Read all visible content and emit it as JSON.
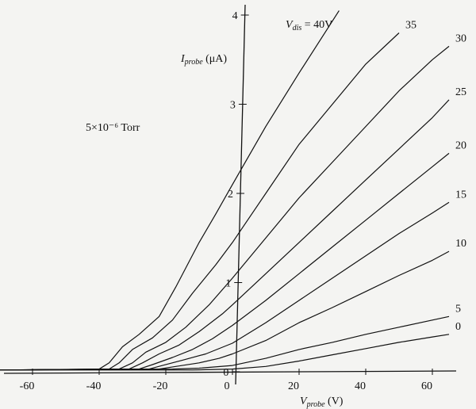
{
  "chart_data": {
    "type": "line",
    "annotation": "5×10⁻⁶ Torr",
    "xaxis": {
      "label_var": "V",
      "label_sub": "probe",
      "label_unit": "(V)",
      "range": [
        -70,
        70
      ],
      "ticks": [
        -60,
        -40,
        -20,
        0,
        20,
        40,
        60
      ],
      "tick_labels": [
        "-60",
        "-40",
        "-20",
        "0",
        "20",
        "40",
        "60"
      ]
    },
    "yaxis": {
      "label_var": "I",
      "label_sub": "probe",
      "label_unit": "(μA)",
      "range": [
        -0.05,
        4.2
      ],
      "ticks": [
        0,
        1,
        2,
        3,
        4
      ],
      "tick_labels": [
        "0",
        "1",
        "2",
        "3",
        "4"
      ]
    },
    "series_label_var": "V",
    "series_label_sub": "dis",
    "grid": false,
    "series": [
      {
        "label": "40V",
        "points": [
          [
            -70,
            0.02
          ],
          [
            -40,
            0.03
          ],
          [
            -37,
            0.1
          ],
          [
            -33,
            0.28
          ],
          [
            -28,
            0.42
          ],
          [
            -22,
            0.62
          ],
          [
            -17,
            0.95
          ],
          [
            -10,
            1.45
          ],
          [
            -5,
            1.77
          ],
          [
            0,
            2.1
          ],
          [
            10,
            2.75
          ],
          [
            20,
            3.35
          ],
          [
            32,
            4.05
          ]
        ]
      },
      {
        "label": "35",
        "points": [
          [
            -70,
            0.02
          ],
          [
            -37,
            0.03
          ],
          [
            -34,
            0.1
          ],
          [
            -30,
            0.25
          ],
          [
            -24,
            0.38
          ],
          [
            -18,
            0.58
          ],
          [
            -12,
            0.88
          ],
          [
            -5,
            1.2
          ],
          [
            0,
            1.45
          ],
          [
            10,
            2.0
          ],
          [
            20,
            2.55
          ],
          [
            30,
            3.0
          ],
          [
            40,
            3.45
          ],
          [
            50,
            3.8
          ]
        ]
      },
      {
        "label": "30",
        "points": [
          [
            -70,
            0.02
          ],
          [
            -34,
            0.03
          ],
          [
            -30,
            0.1
          ],
          [
            -26,
            0.22
          ],
          [
            -20,
            0.33
          ],
          [
            -14,
            0.5
          ],
          [
            -7,
            0.75
          ],
          [
            0,
            1.05
          ],
          [
            10,
            1.5
          ],
          [
            20,
            1.95
          ],
          [
            30,
            2.35
          ],
          [
            40,
            2.75
          ],
          [
            50,
            3.15
          ],
          [
            60,
            3.5
          ],
          [
            65,
            3.65
          ]
        ]
      },
      {
        "label": "25",
        "points": [
          [
            -70,
            0.02
          ],
          [
            -31,
            0.03
          ],
          [
            -27,
            0.1
          ],
          [
            -22,
            0.2
          ],
          [
            -16,
            0.3
          ],
          [
            -10,
            0.45
          ],
          [
            -3,
            0.65
          ],
          [
            0,
            0.75
          ],
          [
            10,
            1.1
          ],
          [
            20,
            1.45
          ],
          [
            30,
            1.8
          ],
          [
            40,
            2.15
          ],
          [
            50,
            2.5
          ],
          [
            60,
            2.85
          ],
          [
            65,
            3.05
          ]
        ]
      },
      {
        "label": "20",
        "points": [
          [
            -70,
            0.02
          ],
          [
            -28,
            0.03
          ],
          [
            -24,
            0.08
          ],
          [
            -18,
            0.16
          ],
          [
            -12,
            0.25
          ],
          [
            -6,
            0.37
          ],
          [
            0,
            0.52
          ],
          [
            10,
            0.8
          ],
          [
            20,
            1.1
          ],
          [
            30,
            1.4
          ],
          [
            40,
            1.7
          ],
          [
            50,
            2.0
          ],
          [
            60,
            2.3
          ],
          [
            65,
            2.45
          ]
        ]
      },
      {
        "label": "15",
        "points": [
          [
            -70,
            0.02
          ],
          [
            -25,
            0.03
          ],
          [
            -21,
            0.07
          ],
          [
            -15,
            0.13
          ],
          [
            -8,
            0.2
          ],
          [
            0,
            0.32
          ],
          [
            10,
            0.55
          ],
          [
            20,
            0.8
          ],
          [
            30,
            1.05
          ],
          [
            40,
            1.3
          ],
          [
            50,
            1.55
          ],
          [
            60,
            1.78
          ],
          [
            65,
            1.9
          ]
        ]
      },
      {
        "label": "10",
        "points": [
          [
            -70,
            0.02
          ],
          [
            -22,
            0.03
          ],
          [
            -17,
            0.06
          ],
          [
            -10,
            0.1
          ],
          [
            -4,
            0.15
          ],
          [
            0,
            0.2
          ],
          [
            10,
            0.35
          ],
          [
            20,
            0.55
          ],
          [
            30,
            0.72
          ],
          [
            40,
            0.9
          ],
          [
            50,
            1.08
          ],
          [
            60,
            1.25
          ],
          [
            65,
            1.35
          ]
        ]
      },
      {
        "label": "5",
        "points": [
          [
            -70,
            0.02
          ],
          [
            -18,
            0.03
          ],
          [
            -10,
            0.04
          ],
          [
            0,
            0.07
          ],
          [
            10,
            0.15
          ],
          [
            20,
            0.25
          ],
          [
            30,
            0.33
          ],
          [
            40,
            0.42
          ],
          [
            50,
            0.5
          ],
          [
            60,
            0.58
          ],
          [
            65,
            0.62
          ]
        ]
      },
      {
        "label": "0",
        "points": [
          [
            -70,
            0.02
          ],
          [
            -12,
            0.02
          ],
          [
            0,
            0.03
          ],
          [
            10,
            0.06
          ],
          [
            20,
            0.12
          ],
          [
            30,
            0.19
          ],
          [
            40,
            0.26
          ],
          [
            50,
            0.33
          ],
          [
            60,
            0.39
          ],
          [
            65,
            0.42
          ]
        ]
      }
    ]
  }
}
